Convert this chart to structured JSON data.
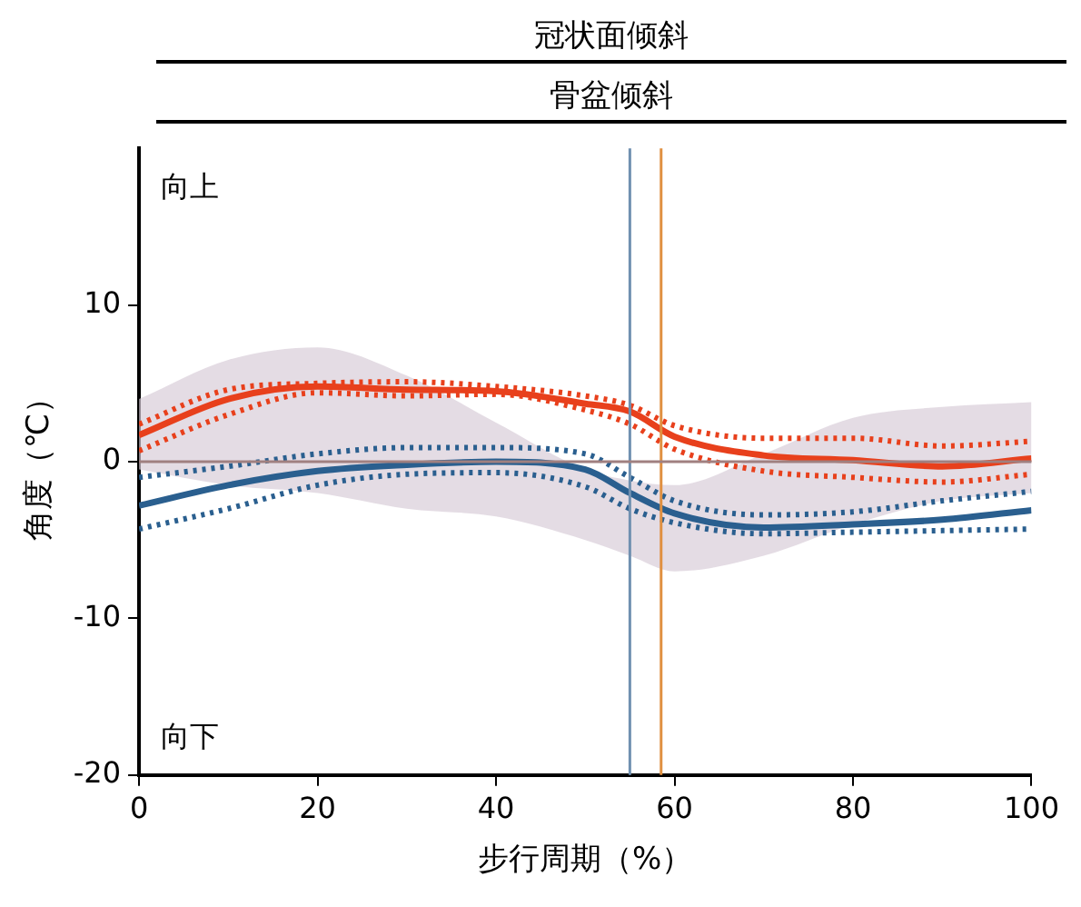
{
  "chart_data": {
    "type": "line",
    "title": "冠状面倾斜",
    "subtitle": "骨盆倾斜",
    "xlabel": "步行周期（%）",
    "ylabel": "角度（℃）",
    "x": [
      0,
      10,
      20,
      30,
      40,
      50,
      55,
      60,
      70,
      80,
      90,
      100
    ],
    "series": [
      {
        "color": "#d8ccd8",
        "values": [
          null,
          null,
          null,
          null,
          null,
          null,
          null,
          null,
          null,
          null,
          null,
          null
        ],
        "lower": [
          -0.5,
          -1.5,
          -2.0,
          -3.0,
          -3.5,
          -5.0,
          -6.0,
          -7.0,
          -6.0,
          -4.0,
          -2.5,
          -2.0
        ],
        "upper": [
          4.0,
          6.5,
          7.3,
          5.5,
          2.5,
          -0.5,
          -1.2,
          -1.5,
          0.5,
          2.8,
          3.5,
          3.8
        ]
      },
      {
        "color": "#e8401c",
        "values": [
          1.7,
          4.0,
          4.8,
          4.6,
          4.5,
          3.7,
          3.2,
          1.6,
          0.4,
          0.1,
          -0.3,
          0.2
        ]
      },
      {
        "color": "#e8401c",
        "line_style": "dotted",
        "values": [
          0.7,
          3.0,
          4.4,
          4.2,
          4.3,
          3.3,
          2.4,
          0.8,
          -0.6,
          -1.0,
          -1.3,
          -0.8
        ]
      },
      {
        "color": "#e8401c",
        "line_style": "dotted",
        "values": [
          2.4,
          4.6,
          5.0,
          5.1,
          4.8,
          4.2,
          3.6,
          2.3,
          1.5,
          1.5,
          1.0,
          1.3
        ]
      },
      {
        "color": "#2a5f8f",
        "values": [
          -2.8,
          -1.5,
          -0.6,
          -0.2,
          0.0,
          -0.5,
          -2.0,
          -3.3,
          -4.2,
          -4.0,
          -3.7,
          -3.1
        ]
      },
      {
        "color": "#2a5f8f",
        "line_style": "dotted",
        "values": [
          -4.3,
          -3.0,
          -1.5,
          -0.8,
          -0.7,
          -1.6,
          -3.0,
          -3.9,
          -4.6,
          -4.5,
          -4.4,
          -4.3
        ]
      },
      {
        "color": "#2a5f8f",
        "line_style": "dotted",
        "values": [
          -1.0,
          -0.3,
          0.5,
          0.9,
          0.9,
          0.5,
          -1.0,
          -2.5,
          -3.4,
          -3.2,
          -2.5,
          -1.9
        ]
      }
    ],
    "xlim": [
      0,
      100
    ],
    "xticks": [
      0,
      20,
      40,
      60,
      80,
      100
    ],
    "ylim": [
      -20,
      20
    ],
    "yticks": [
      -20,
      -10,
      0,
      10
    ],
    "ref_lines": [
      {
        "axis": "x",
        "value": 55,
        "color": "#7090b0"
      },
      {
        "axis": "x",
        "value": 58.5,
        "color": "#e09040"
      },
      {
        "axis": "y",
        "value": 0,
        "color": "#a08080"
      }
    ],
    "annotations": [
      "向上",
      "向下"
    ],
    "grid": false,
    "legend": false,
    "marker": "none",
    "line_style": "solid"
  }
}
